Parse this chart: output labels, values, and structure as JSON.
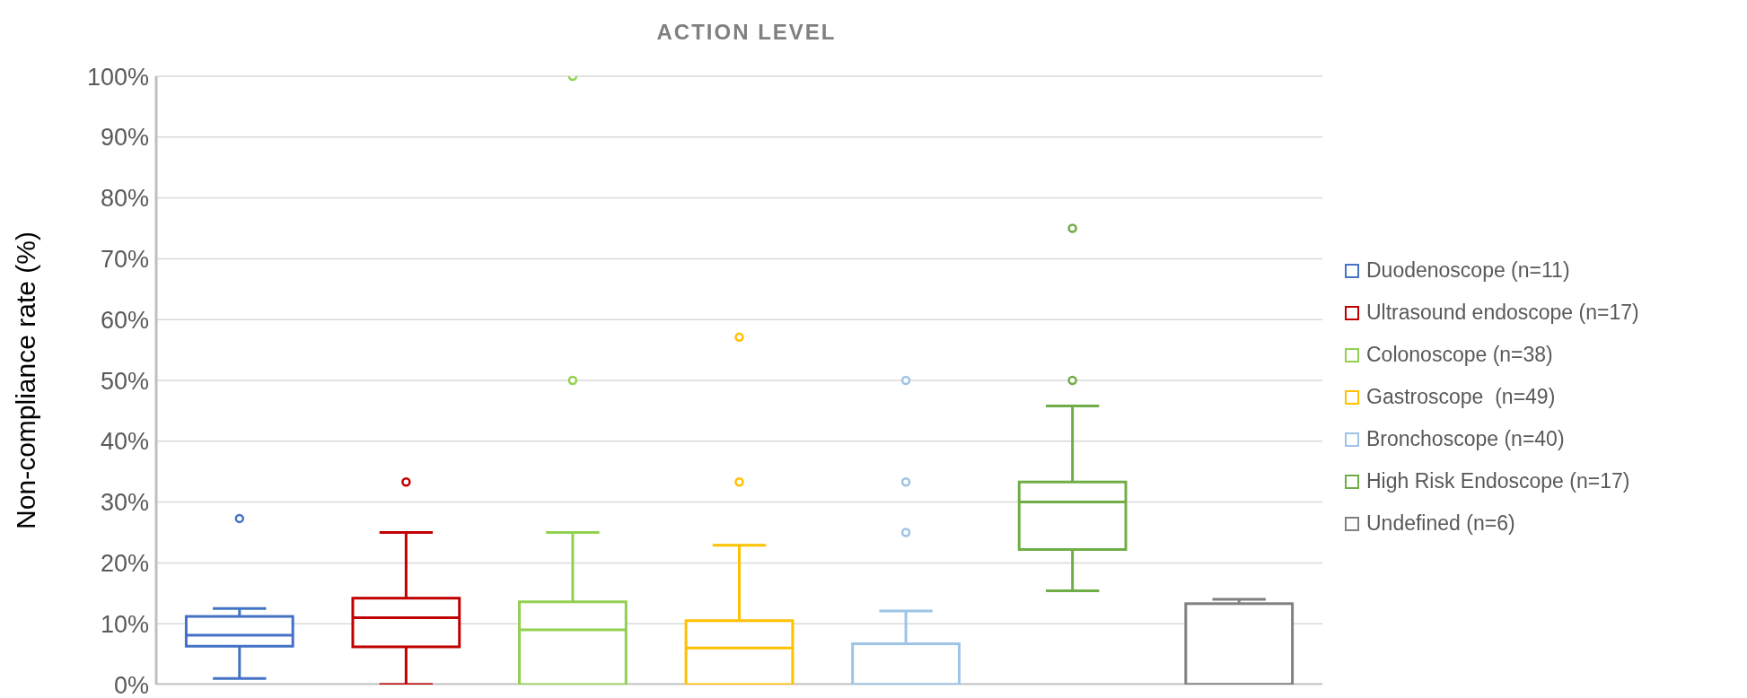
{
  "chart_data": {
    "type": "box",
    "title": "ACTION LEVEL",
    "ylabel": "Non-compliance rate (%)",
    "categories": [
      null
    ],
    "ylim": [
      0,
      100
    ],
    "yticks": [
      {
        "value": 0,
        "label": "0%"
      },
      {
        "value": 10,
        "label": "10%"
      },
      {
        "value": 20,
        "label": "20%"
      },
      {
        "value": 30,
        "label": "30%"
      },
      {
        "value": 40,
        "label": "40%"
      },
      {
        "value": 50,
        "label": "50%"
      },
      {
        "value": 60,
        "label": "60%"
      },
      {
        "value": 70,
        "label": "70%"
      },
      {
        "value": 80,
        "label": "80%"
      },
      {
        "value": 90,
        "label": "90%"
      },
      {
        "value": 100,
        "label": "100%"
      }
    ],
    "grid": "y",
    "legend": "right",
    "marker": "circle",
    "series": [
      {
        "name": "Duodenoscope (n=11)",
        "color": "#4472c4",
        "boxes": [
          {
            "low": 1,
            "q1": 6.3,
            "median": 8.1,
            "q3": 11.2,
            "high": 12.5,
            "outliers": [
              27.3
            ]
          }
        ]
      },
      {
        "name": "Ultrasound endoscope (n=17)",
        "color": "#c00000",
        "boxes": [
          {
            "low": 0,
            "q1": 6.2,
            "median": 11,
            "q3": 14.2,
            "high": 25,
            "outliers": [
              33.3
            ]
          }
        ]
      },
      {
        "name": "Colonoscope (n=38)",
        "color": "#92d050",
        "boxes": [
          {
            "low": 0,
            "q1": 0,
            "median": 9,
            "q3": 13.6,
            "high": 25,
            "outliers": [
              50,
              100
            ]
          }
        ]
      },
      {
        "name": "Gastroscope  (n=49)",
        "color": "#ffc000",
        "boxes": [
          {
            "low": 0,
            "q1": 0,
            "median": 6,
            "q3": 10.5,
            "high": 22.9,
            "outliers": [
              33.3,
              57.1
            ]
          }
        ]
      },
      {
        "name": "Bronchoscope (n=40)",
        "color": "#9dc3e6",
        "boxes": [
          {
            "low": 0,
            "q1": 0,
            "median": 0,
            "q3": 6.7,
            "high": 12.1,
            "outliers": [
              25,
              33.3,
              50
            ]
          }
        ]
      },
      {
        "name": "High Risk Endoscope (n=17)",
        "color": "#70ad47",
        "boxes": [
          {
            "low": 15.4,
            "q1": 22.2,
            "median": 30,
            "q3": 33.3,
            "high": 45.8,
            "outliers": [
              50,
              75
            ]
          }
        ]
      },
      {
        "name": "Undefined (n=6)",
        "color": "#808080",
        "boxes": [
          {
            "low": 0,
            "q1": 0,
            "median": 0,
            "q3": 13.3,
            "high": 14
          }
        ]
      }
    ]
  }
}
